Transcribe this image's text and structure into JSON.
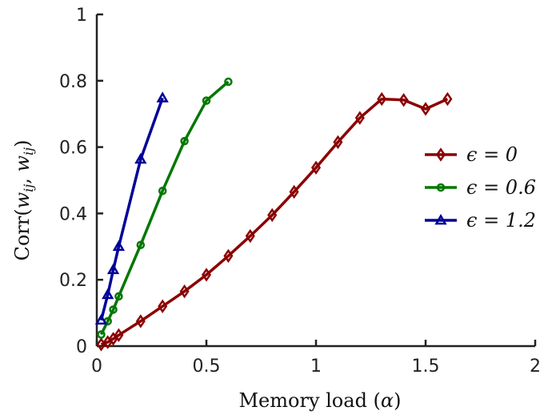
{
  "chart_data": {
    "type": "line",
    "title": "",
    "xlabel": "Memory load (α)",
    "ylabel": "Corr(w_ij, w_ij)",
    "xlim": [
      0,
      2
    ],
    "ylim": [
      0,
      1
    ],
    "xticks": [
      "0",
      "0.5",
      "1",
      "1.5",
      "2"
    ],
    "yticks": [
      "0",
      "0.2",
      "0.4",
      "0.6",
      "0.8",
      "1"
    ],
    "grid": false,
    "legend_position": "right",
    "series": [
      {
        "name": "ϵ = 0",
        "color": "#8b0000",
        "marker": "diamond",
        "x": [
          0.02,
          0.05,
          0.075,
          0.1,
          0.2,
          0.3,
          0.4,
          0.5,
          0.6,
          0.7,
          0.8,
          0.9,
          1.0,
          1.1,
          1.2,
          1.3,
          1.4,
          1.5,
          1.6
        ],
        "y": [
          0.005,
          0.012,
          0.022,
          0.033,
          0.075,
          0.12,
          0.165,
          0.215,
          0.272,
          0.332,
          0.395,
          0.465,
          0.538,
          0.615,
          0.688,
          0.745,
          0.742,
          0.715,
          0.745
        ]
      },
      {
        "name": "ϵ = 0.6",
        "color": "#007700",
        "marker": "circle",
        "x": [
          0.02,
          0.05,
          0.075,
          0.1,
          0.2,
          0.3,
          0.4,
          0.5,
          0.6
        ],
        "y": [
          0.035,
          0.075,
          0.11,
          0.15,
          0.305,
          0.468,
          0.618,
          0.74,
          0.797
        ]
      },
      {
        "name": "ϵ = 1.2",
        "color": "#000099",
        "marker": "triangle",
        "x": [
          0.02,
          0.05,
          0.075,
          0.1,
          0.2,
          0.3
        ],
        "y": [
          0.078,
          0.155,
          0.23,
          0.3,
          0.563,
          0.748
        ]
      }
    ]
  }
}
